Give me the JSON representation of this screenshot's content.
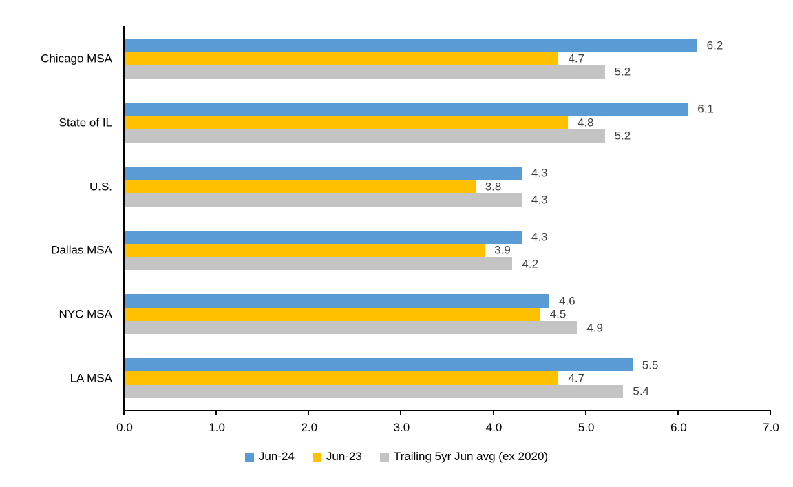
{
  "chart_data": {
    "type": "bar",
    "orientation": "horizontal",
    "categories": [
      "Chicago MSA",
      "State of IL",
      "U.S.",
      "Dallas MSA",
      "NYC MSA",
      "LA MSA"
    ],
    "series": [
      {
        "name": "Jun-24",
        "color": "#5B9BD5",
        "values": [
          6.2,
          6.1,
          4.3,
          4.3,
          4.6,
          5.5
        ]
      },
      {
        "name": "Jun-23",
        "color": "#FFC000",
        "values": [
          4.7,
          4.8,
          3.8,
          3.9,
          4.5,
          4.7
        ]
      },
      {
        "name": "Trailing 5yr Jun avg (ex 2020)",
        "color": "#C4C4C4",
        "values": [
          5.2,
          5.2,
          4.3,
          4.2,
          4.9,
          5.4
        ]
      }
    ],
    "xlim": [
      0,
      7
    ],
    "x_ticks": [
      0.0,
      1.0,
      2.0,
      3.0,
      4.0,
      5.0,
      6.0,
      7.0
    ],
    "x_tick_labels": [
      "0.0",
      "1.0",
      "2.0",
      "3.0",
      "4.0",
      "5.0",
      "6.0",
      "7.0"
    ],
    "value_label_decimals": 1,
    "show_value_labels": true,
    "grid": false,
    "legend_position": "bottom",
    "axis_color": "#000000",
    "value_label_color": "#404040",
    "text_color": "#000000",
    "background_color": "#FFFFFF"
  }
}
